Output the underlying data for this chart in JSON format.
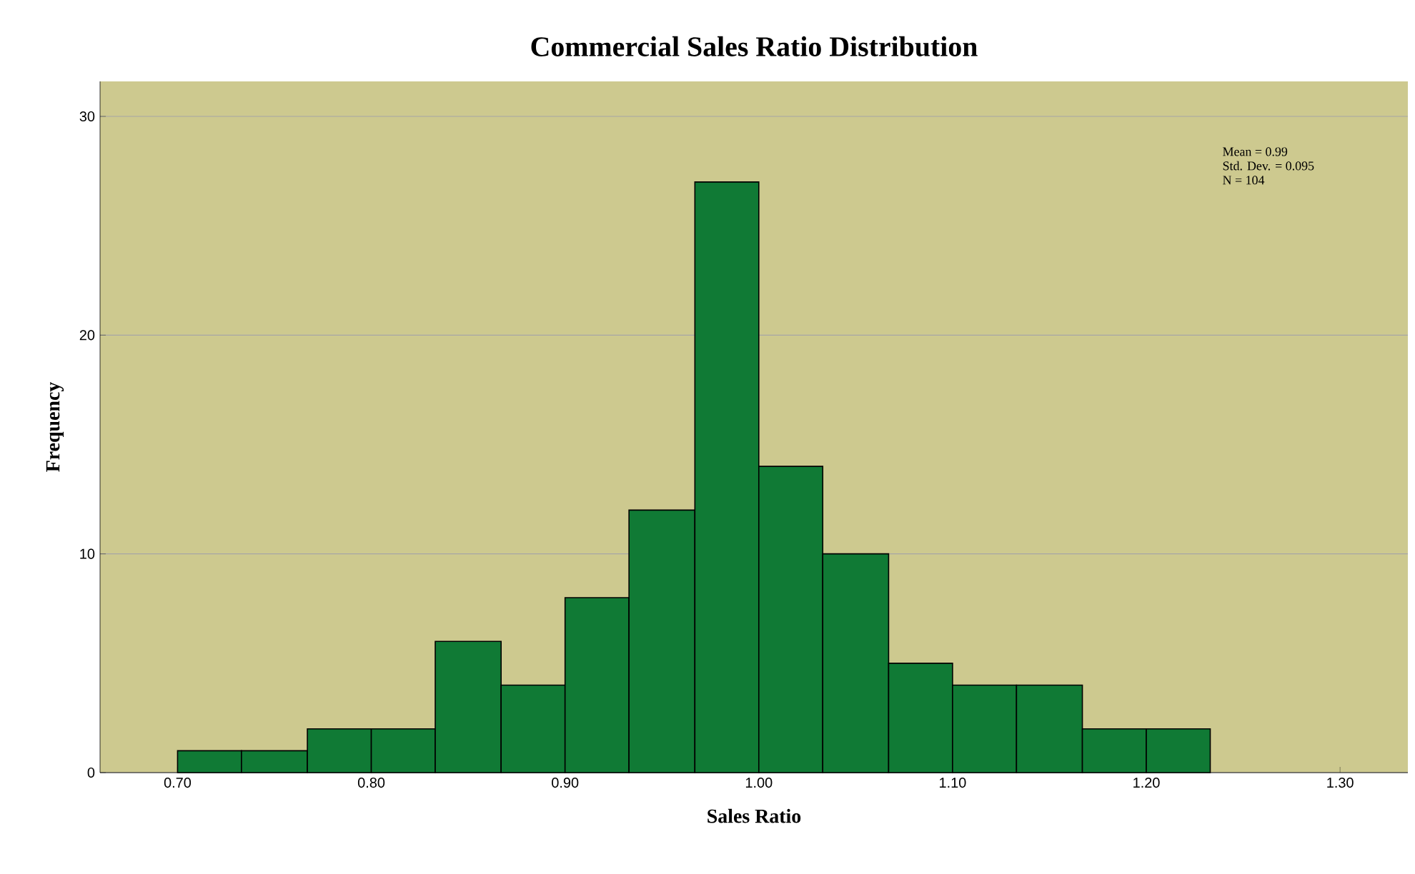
{
  "chart_data": {
    "type": "histogram",
    "title": "Commercial Sales Ratio Distribution",
    "xlabel": "Sales Ratio",
    "ylabel": "Frequency",
    "bins": [
      0.7,
      0.733,
      0.767,
      0.8,
      0.833,
      0.867,
      0.9,
      0.933,
      0.967,
      1.0,
      1.033,
      1.067,
      1.1,
      1.133,
      1.167,
      1.2,
      1.233
    ],
    "values": [
      1,
      1,
      2,
      2,
      6,
      4,
      8,
      12,
      27,
      14,
      10,
      5,
      4,
      4,
      2,
      2
    ],
    "color": "#107a35",
    "xlim": [
      0.66,
      1.335
    ],
    "xticks": [
      {
        "value": 0.7,
        "label": "0.70"
      },
      {
        "value": 0.8,
        "label": "0.80"
      },
      {
        "value": 0.9,
        "label": "0.90"
      },
      {
        "value": 1.0,
        "label": "1.00"
      },
      {
        "value": 1.1,
        "label": "1.10"
      },
      {
        "value": 1.2,
        "label": "1.20"
      },
      {
        "value": 1.3,
        "label": "1.30"
      }
    ],
    "ylim": [
      0,
      31.6
    ],
    "yticks": [
      0,
      10,
      20,
      30
    ],
    "grid": "y",
    "annotations": [
      "Mean = 0.99",
      "Std. Dev. = 0.095",
      "N = 104"
    ]
  }
}
